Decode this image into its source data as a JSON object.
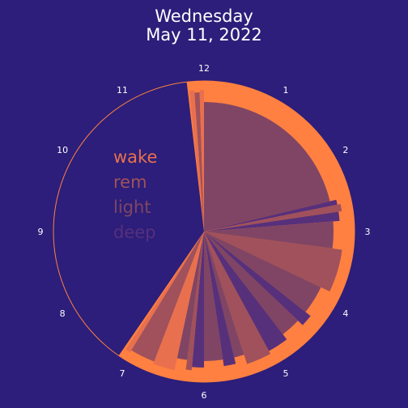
{
  "title": {
    "line1": "Wednesday",
    "line2": "May 11, 2022"
  },
  "colors": {
    "background": "#2c1e7a",
    "ring": "#ff8040",
    "wake": "#e9704e",
    "rem": "#a0515b",
    "light": "#804564",
    "deep": "#57307b"
  },
  "chart_data": {
    "type": "polar-bar",
    "title": "Wednesday May 11, 2022",
    "clock_labels": [
      "12",
      "1",
      "2",
      "3",
      "4",
      "5",
      "6",
      "7",
      "8",
      "9",
      "10",
      "11"
    ],
    "legend": [
      "wake",
      "rem",
      "light",
      "deep"
    ],
    "sleep_window": {
      "start_hour": 11.78,
      "end_hour": 7.15
    },
    "segments": [
      {
        "stage": "wake",
        "start": 11.8,
        "end": 11.87
      },
      {
        "stage": "rem",
        "start": 11.87,
        "end": 11.94
      },
      {
        "stage": "wake",
        "start": 11.94,
        "end": 12.0
      },
      {
        "stage": "light",
        "start": 12.0,
        "end": 2.55
      },
      {
        "stage": "deep",
        "start": 2.55,
        "end": 2.62
      },
      {
        "stage": "rem",
        "start": 2.62,
        "end": 2.72
      },
      {
        "stage": "deep",
        "start": 2.72,
        "end": 2.85
      },
      {
        "stage": "light",
        "start": 2.85,
        "end": 3.25
      },
      {
        "stage": "rem",
        "start": 3.25,
        "end": 3.85
      },
      {
        "stage": "light",
        "start": 3.85,
        "end": 4.28
      },
      {
        "stage": "deep",
        "start": 4.28,
        "end": 4.45
      },
      {
        "stage": "light",
        "start": 4.45,
        "end": 4.75
      },
      {
        "stage": "deep",
        "start": 4.75,
        "end": 5.05
      },
      {
        "stage": "rem",
        "start": 5.05,
        "end": 5.4
      },
      {
        "stage": "light",
        "start": 5.4,
        "end": 5.55
      },
      {
        "stage": "deep",
        "start": 5.55,
        "end": 5.72
      },
      {
        "stage": "light",
        "start": 5.72,
        "end": 6.0
      },
      {
        "stage": "deep",
        "start": 6.0,
        "end": 6.17
      },
      {
        "stage": "rem",
        "start": 6.17,
        "end": 6.25
      },
      {
        "stage": "light",
        "start": 6.25,
        "end": 6.4
      },
      {
        "stage": "wake",
        "start": 6.4,
        "end": 6.7
      },
      {
        "stage": "rem",
        "start": 6.7,
        "end": 7.05
      },
      {
        "stage": "wake",
        "start": 7.05,
        "end": 7.12
      }
    ]
  }
}
